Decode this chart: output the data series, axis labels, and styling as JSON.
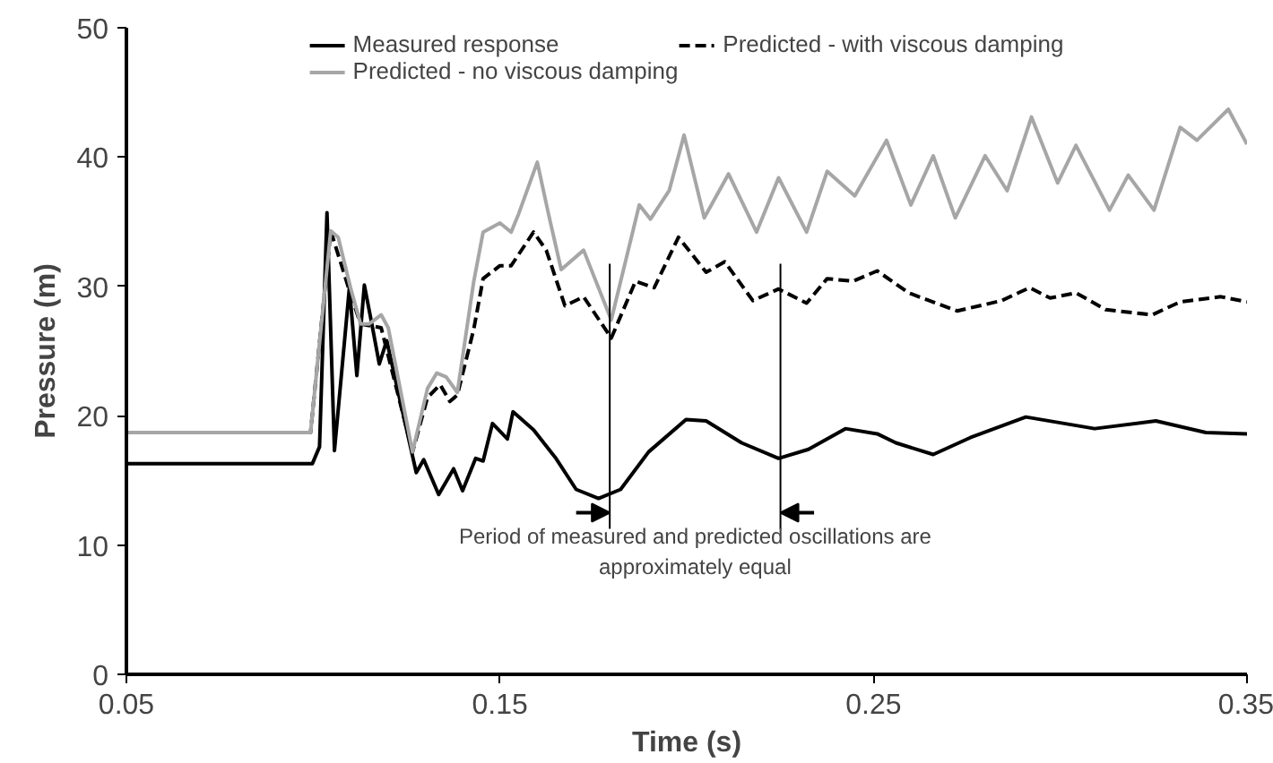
{
  "chart_data": {
    "type": "line",
    "xlabel": "Time (s)",
    "ylabel": "Pressure (m)",
    "xlim": [
      0.05,
      0.35
    ],
    "xticks": [
      0.05,
      0.15,
      0.25,
      0.35
    ],
    "ylim": [
      0,
      50
    ],
    "yticks": [
      0,
      10,
      20,
      30,
      40,
      50
    ],
    "grid": false,
    "legend": "top",
    "marker": "none",
    "series": [
      {
        "name": "Measured response",
        "color": "#000000",
        "line_style": "solid",
        "x": [
          0.05,
          0.0998,
          0.1017,
          0.1037,
          0.1057,
          0.1097,
          0.1117,
          0.1137,
          0.1157,
          0.1177,
          0.1197,
          0.1231,
          0.1276,
          0.1296,
          0.1336,
          0.1376,
          0.14,
          0.1435,
          0.1455,
          0.148,
          0.152,
          0.1535,
          0.159,
          0.165,
          0.1704,
          0.1764,
          0.1823,
          0.1898,
          0.1998,
          0.2052,
          0.2147,
          0.2246,
          0.2326,
          0.2425,
          0.251,
          0.256,
          0.266,
          0.2759,
          0.2908,
          0.3092,
          0.3256,
          0.339,
          0.35
        ],
        "values": [
          16.3,
          16.3,
          17.6,
          35.7,
          17.3,
          29.9,
          23.1,
          30.1,
          27.1,
          24.0,
          25.8,
          21.4,
          15.6,
          16.6,
          13.9,
          15.9,
          14.2,
          16.7,
          16.5,
          19.4,
          18.2,
          20.3,
          18.9,
          16.7,
          14.3,
          13.6,
          14.3,
          17.2,
          19.7,
          19.6,
          17.9,
          16.7,
          17.4,
          19.0,
          18.6,
          17.9,
          17.0,
          18.3,
          19.9,
          19.0,
          19.6,
          18.7,
          18.6
        ]
      },
      {
        "name": "Predicted - with viscous damping",
        "color": "#000000",
        "line_style": "dashed",
        "x": [
          0.05,
          0.0993,
          0.1047,
          0.11,
          0.1127,
          0.1182,
          0.1266,
          0.1306,
          0.134,
          0.1366,
          0.1386,
          0.143,
          0.1455,
          0.15,
          0.153,
          0.159,
          0.1624,
          0.1674,
          0.1724,
          0.1798,
          0.1863,
          0.1913,
          0.1978,
          0.2052,
          0.2102,
          0.2177,
          0.2246,
          0.2321,
          0.2376,
          0.2445,
          0.251,
          0.2594,
          0.2724,
          0.2843,
          0.2918,
          0.2973,
          0.3042,
          0.3122,
          0.3246,
          0.3321,
          0.343,
          0.35
        ],
        "values": [
          18.7,
          18.7,
          34.3,
          29.4,
          27.1,
          26.8,
          17.2,
          21.4,
          22.4,
          21.1,
          21.6,
          26.7,
          30.6,
          31.6,
          31.6,
          34.2,
          32.8,
          28.5,
          29.2,
          26.0,
          30.4,
          29.9,
          33.8,
          31.1,
          31.9,
          28.9,
          29.8,
          28.7,
          30.6,
          30.4,
          31.2,
          29.5,
          28.1,
          28.9,
          29.9,
          29.1,
          29.5,
          28.2,
          27.8,
          28.8,
          29.2,
          28.8
        ]
      },
      {
        "name": "Predicted - no viscous damping",
        "color": "#a6a6a6",
        "line_style": "solid",
        "x": [
          0.05,
          0.0993,
          0.1047,
          0.1067,
          0.11,
          0.1127,
          0.115,
          0.1182,
          0.1201,
          0.1266,
          0.1306,
          0.1331,
          0.1356,
          0.1386,
          0.143,
          0.1455,
          0.15,
          0.153,
          0.155,
          0.16,
          0.163,
          0.1664,
          0.1724,
          0.1798,
          0.1873,
          0.1903,
          0.1953,
          0.1993,
          0.2047,
          0.2112,
          0.2187,
          0.2246,
          0.2321,
          0.2376,
          0.245,
          0.2535,
          0.26,
          0.266,
          0.2719,
          0.2799,
          0.2858,
          0.2923,
          0.2993,
          0.3042,
          0.3132,
          0.3182,
          0.3251,
          0.3321,
          0.3366,
          0.345,
          0.35
        ],
        "values": [
          18.7,
          18.7,
          34.3,
          33.8,
          29.9,
          27.1,
          27.1,
          27.8,
          26.8,
          17.2,
          22.1,
          23.3,
          23.0,
          21.8,
          30.4,
          34.2,
          34.9,
          34.2,
          35.6,
          39.6,
          35.6,
          31.3,
          32.8,
          27.4,
          36.3,
          35.2,
          37.4,
          41.7,
          35.3,
          38.7,
          34.2,
          38.4,
          34.2,
          38.9,
          37.0,
          41.3,
          36.3,
          40.1,
          35.3,
          40.1,
          37.4,
          43.1,
          38.0,
          40.9,
          35.9,
          38.6,
          35.9,
          42.3,
          41.3,
          43.7,
          41.0
        ]
      }
    ],
    "ref_lines": [
      {
        "axis": "x",
        "value": 0.1794,
        "label": null,
        "color": "#000000"
      },
      {
        "axis": "x",
        "value": 0.2251,
        "label": null,
        "color": "#000000"
      }
    ],
    "annotations": [
      "Period of measured and predicted oscillations are\napproximately equal"
    ]
  }
}
